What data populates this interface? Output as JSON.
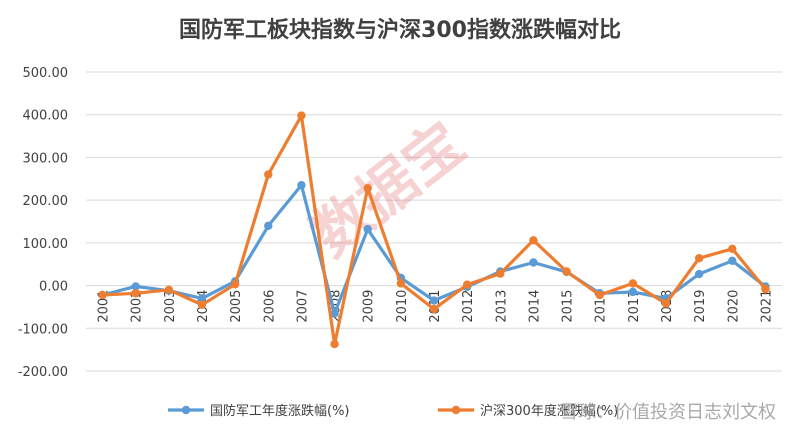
{
  "chart_data": {
    "type": "line",
    "title": "国防军工板块指数与沪深300指数涨跌幅对比",
    "categories": [
      "2001",
      "2002",
      "2003",
      "2004",
      "2005",
      "2006",
      "2007",
      "2008",
      "2009",
      "2010",
      "2011",
      "2012",
      "2013",
      "2014",
      "2015",
      "2016",
      "2017",
      "2018",
      "2019",
      "2020",
      "2021"
    ],
    "series": [
      {
        "name": "国防军工年度涨跌幅(%)",
        "color": "#5b9bd5",
        "values": [
          -22,
          -2,
          -12,
          -30,
          10,
          140,
          235,
          -65,
          132,
          18,
          -35,
          -3,
          33,
          54,
          32,
          -18,
          -15,
          -30,
          27,
          58,
          -2
        ]
      },
      {
        "name": "沪深300年度涨跌幅(%)",
        "color": "#ed7d31",
        "values": [
          -22,
          -18,
          -10,
          -45,
          3,
          260,
          398,
          -137,
          228,
          5,
          -55,
          2,
          28,
          106,
          33,
          -22,
          5,
          -42,
          64,
          86,
          -8
        ]
      }
    ],
    "ylim": [
      -200,
      500
    ],
    "yticks": [
      "500.00",
      "400.00",
      "300.00",
      "200.00",
      "100.00",
      "0.00",
      "-100.00",
      "-200.00"
    ],
    "ytick_values": [
      500,
      400,
      300,
      200,
      100,
      0,
      -100,
      -200
    ],
    "grid": true,
    "legend_position": "bottom"
  },
  "watermark": "数据宝",
  "footer": "雪球：价值投资日志刘文权"
}
